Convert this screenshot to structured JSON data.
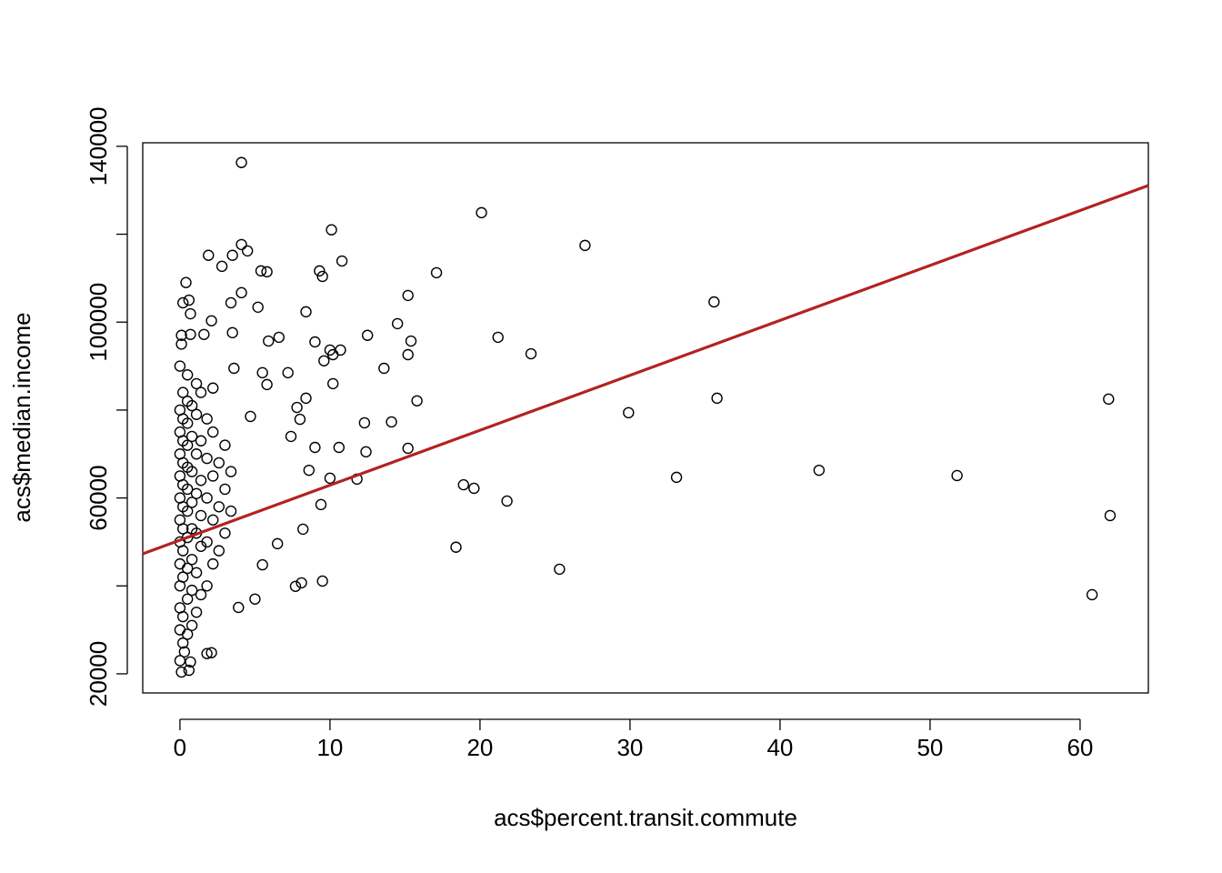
{
  "chart_data": {
    "type": "scatter",
    "x_label": "acs$percent.transit.commute",
    "y_label": "acs$median.income",
    "xlim": [
      -2.48,
      64.55
    ],
    "ylim": [
      15650,
      140800
    ],
    "xticks": [
      0,
      10,
      20,
      30,
      40,
      50,
      60
    ],
    "yticks": [
      20000,
      60000,
      100000,
      140000
    ],
    "minor_yticks": [
      40000,
      80000,
      120000
    ],
    "color": "#000000",
    "regression_line": {
      "intercept": 50400,
      "slope": 1250,
      "color": "#b22222"
    },
    "x": [
      4.1,
      20.1,
      10.1,
      27.0,
      4.1,
      4.5,
      1.9,
      10.8,
      3.5,
      2.8,
      17.1,
      9.3,
      9.5,
      5.4,
      5.8,
      0.4,
      15.2,
      4.1,
      0.2,
      0.6,
      3.4,
      5.2,
      35.6,
      8.4,
      0.7,
      2.1,
      14.5,
      0.1,
      0.7,
      1.6,
      3.5,
      12.5,
      6.6,
      5.9,
      15.4,
      21.2,
      9.0,
      23.4,
      10.0,
      10.7,
      10.2,
      9.6,
      15.2,
      13.6,
      7.2,
      3.6,
      5.5,
      10.2,
      5.8,
      8.4,
      15.8,
      35.8,
      61.9,
      7.8,
      29.9,
      4.7,
      12.3,
      14.1,
      8.0,
      7.4,
      9.0,
      10.6,
      12.4,
      15.2,
      8.6,
      10.0,
      11.8,
      33.1,
      42.6,
      51.8,
      18.9,
      19.6,
      21.8,
      9.4,
      62.0,
      8.2,
      18.4,
      6.5,
      25.3,
      5.5,
      9.5,
      8.1,
      7.7,
      5.0,
      3.9,
      60.8,
      2.1,
      1.8,
      0.1,
      0.6,
      0.7,
      0,
      0,
      0,
      0,
      0,
      0,
      0,
      0,
      0,
      0,
      0,
      0.2,
      0.2,
      0.2,
      0.2,
      0.2,
      0.2,
      0.2,
      0.2,
      0.2,
      0.2,
      0.2,
      0.5,
      0.5,
      0.5,
      0.5,
      0.5,
      0.5,
      0.5,
      0.5,
      0.5,
      0.5,
      0.5,
      0.8,
      0.8,
      0.8,
      0.8,
      0.8,
      0.8,
      0.8,
      0.8,
      1.1,
      1.1,
      1.1,
      1.1,
      1.1,
      1.1,
      1.1,
      1.4,
      1.4,
      1.4,
      1.4,
      1.4,
      1.4,
      1.8,
      1.8,
      1.8,
      1.8,
      1.8,
      2.2,
      2.2,
      2.2,
      2.2,
      2.2,
      2.6,
      2.6,
      2.6,
      3.0,
      3.0,
      3.0,
      3.4,
      3.4,
      0,
      0.3,
      0,
      0.1
    ],
    "values": [
      136300,
      124900,
      121000,
      117450,
      117650,
      116200,
      115200,
      113900,
      115200,
      112700,
      111240,
      111660,
      110400,
      111660,
      111450,
      109000,
      106070,
      106700,
      104400,
      105000,
      104400,
      103400,
      104600,
      102350,
      101900,
      100300,
      99650,
      97000,
      97200,
      97200,
      97600,
      97000,
      96550,
      95700,
      95700,
      96550,
      95500,
      92800,
      93650,
      93650,
      92600,
      91200,
      92600,
      89500,
      88500,
      89500,
      88500,
      86000,
      85800,
      82700,
      82100,
      82700,
      82500,
      80600,
      79400,
      78550,
      77100,
      77300,
      77900,
      74000,
      71500,
      71500,
      70500,
      71300,
      66300,
      64500,
      64300,
      64700,
      66300,
      65100,
      63000,
      62200,
      59300,
      58500,
      56000,
      52900,
      48800,
      49600,
      43800,
      44800,
      41100,
      40700,
      39900,
      37000,
      35100,
      38000,
      24800,
      24600,
      20400,
      20800,
      22700,
      30000,
      35000,
      40000,
      45000,
      50000,
      55000,
      60000,
      65000,
      70000,
      75000,
      80000,
      27000,
      33000,
      42000,
      48000,
      53000,
      58000,
      63000,
      68000,
      73000,
      78000,
      84000,
      29000,
      37000,
      44000,
      51000,
      57000,
      62000,
      67000,
      72000,
      77000,
      82000,
      88000,
      31000,
      39000,
      46000,
      53000,
      59000,
      66000,
      74000,
      81000,
      34000,
      43000,
      52000,
      61000,
      70000,
      79000,
      86000,
      38000,
      49000,
      56000,
      64000,
      73000,
      84000,
      40000,
      50000,
      60000,
      69000,
      78000,
      45000,
      55000,
      65000,
      75000,
      85000,
      48000,
      58000,
      68000,
      52000,
      62000,
      72000,
      57000,
      66000,
      23000,
      25000,
      90000,
      95000
    ]
  }
}
